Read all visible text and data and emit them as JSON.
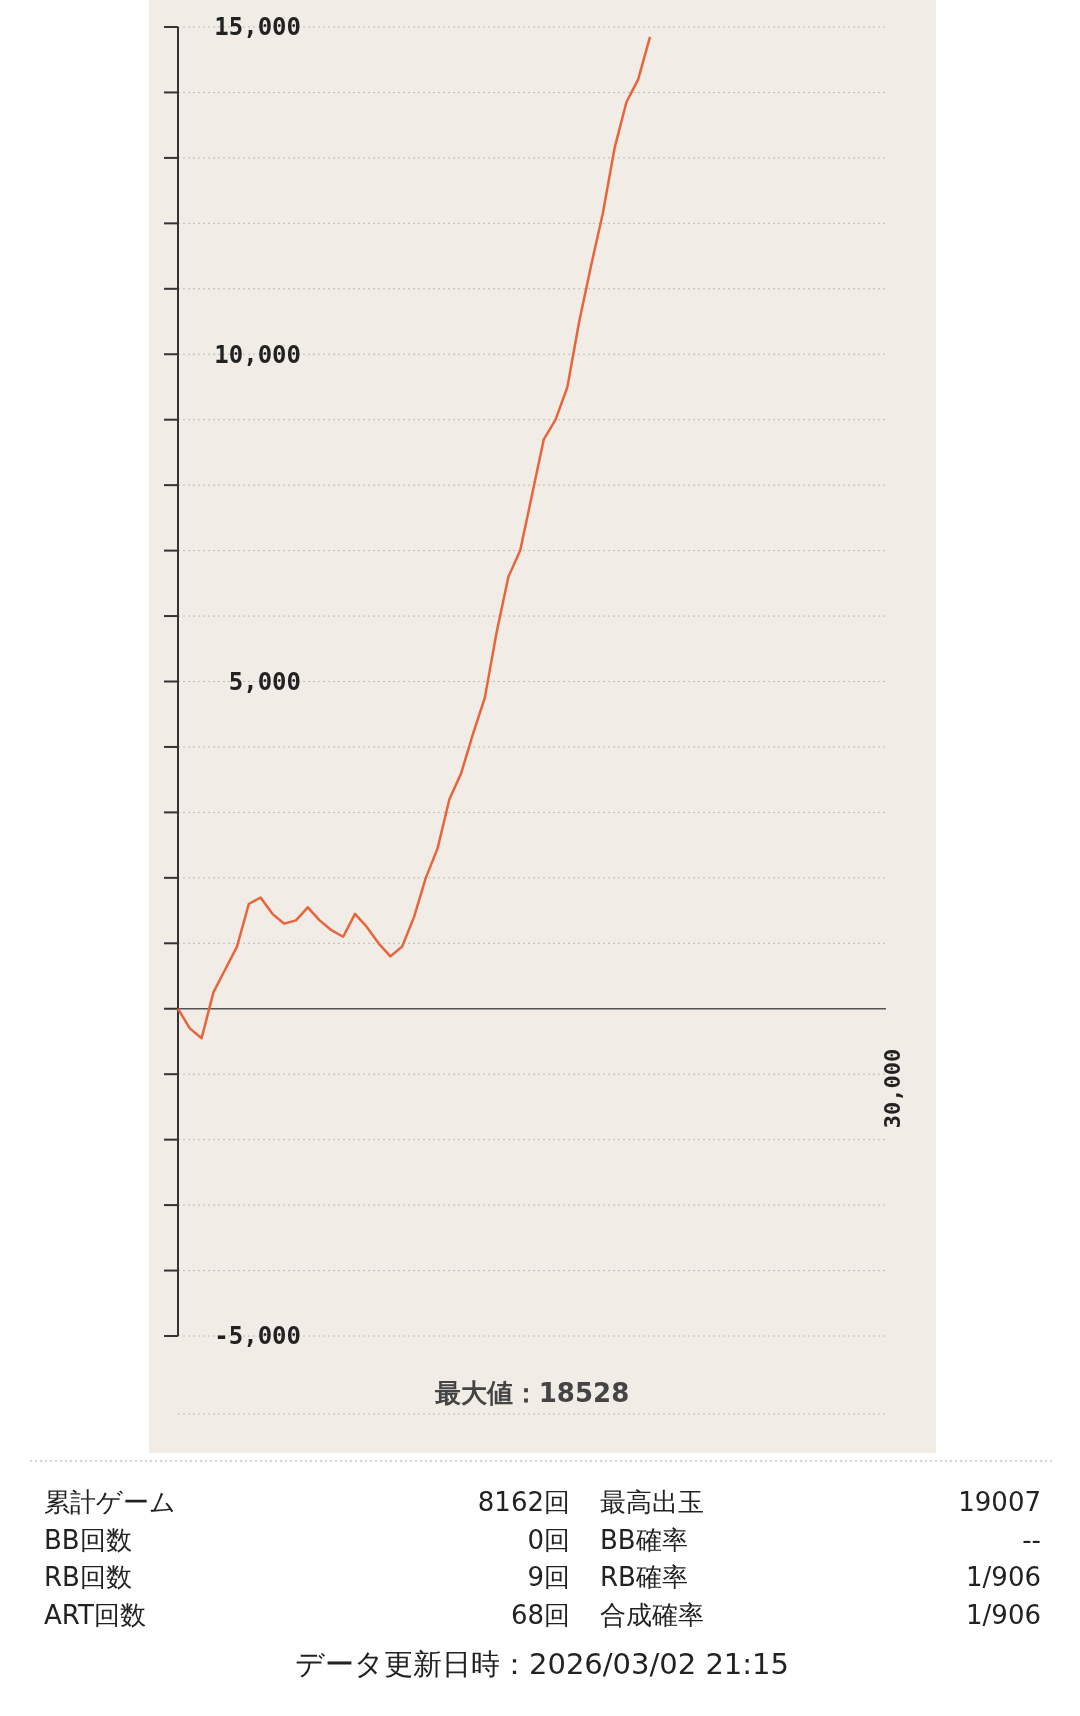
{
  "chart_data": [
    {
      "type": "line",
      "categories": [
        null,
        null,
        null,
        null,
        null,
        null,
        null,
        null,
        null,
        null,
        null,
        null,
        null,
        null,
        null,
        null,
        null,
        null,
        null,
        null,
        null,
        null,
        null,
        null,
        null,
        null,
        null,
        null,
        null,
        null,
        null,
        null,
        null,
        null,
        null,
        null,
        null,
        null,
        null,
        null,
        null,
        null,
        null,
        null,
        null,
        null,
        null,
        null,
        null,
        null,
        null,
        null,
        null,
        null,
        null,
        null,
        null,
        null,
        null,
        null,
        null
      ],
      "series": [
        {
          "color": "#e8643c",
          "values": [
            0,
            -300,
            -450,
            250,
            600,
            950,
            1600,
            1700,
            1450,
            1300,
            1350,
            1550,
            1350,
            1200,
            1100,
            1450,
            1250,
            1000,
            800,
            950,
            1400,
            2000,
            2450,
            3200,
            3600,
            4200,
            4750,
            5750,
            6600,
            7000,
            7850,
            8700,
            9000,
            9500,
            10500,
            11350,
            12150,
            13150,
            13850,
            14200,
            14850,
            null,
            null,
            null,
            null,
            null,
            null,
            null,
            null,
            null,
            null,
            null,
            null,
            null,
            null,
            null,
            null,
            null,
            null,
            null,
            null
          ]
        }
      ],
      "ylim": [
        -5000,
        15000
      ],
      "yticks": [
        {
          "value": -5000,
          "label": "-5,000"
        },
        {
          "value": -4000,
          "label": null
        },
        {
          "value": -3000,
          "label": null
        },
        {
          "value": -2000,
          "label": null
        },
        {
          "value": -1000,
          "label": null
        },
        {
          "value": 0,
          "label": null
        },
        {
          "value": 1000,
          "label": null
        },
        {
          "value": 2000,
          "label": null
        },
        {
          "value": 3000,
          "label": null
        },
        {
          "value": 4000,
          "label": null
        },
        {
          "value": 5000,
          "label": "5,000"
        },
        {
          "value": 6000,
          "label": null
        },
        {
          "value": 7000,
          "label": null
        },
        {
          "value": 8000,
          "label": null
        },
        {
          "value": 9000,
          "label": null
        },
        {
          "value": 10000,
          "label": "10,000"
        },
        {
          "value": 11000,
          "label": null
        },
        {
          "value": 12000,
          "label": null
        },
        {
          "value": 13000,
          "label": null
        },
        {
          "value": 14000,
          "label": null
        },
        {
          "value": 15000,
          "label": "15,000"
        }
      ],
      "grid": "y",
      "ref_lines": [
        {
          "axis": "y",
          "value": 0,
          "color": "#555555"
        }
      ],
      "annotations": [
        "最大値：18528",
        "30,000"
      ]
    },
    {
      "type": "other",
      "annotations": [
        "累計ゲーム",
        "8162回",
        "最高出玉",
        "19007",
        "BB回数",
        "0回",
        "BB確率",
        "--",
        "RB回数",
        "9回",
        "RB確率",
        "1/906",
        "ART回数",
        "68回",
        "合成確率",
        "1/906",
        "データ更新日時：2026/03/02  21:15"
      ]
    }
  ]
}
